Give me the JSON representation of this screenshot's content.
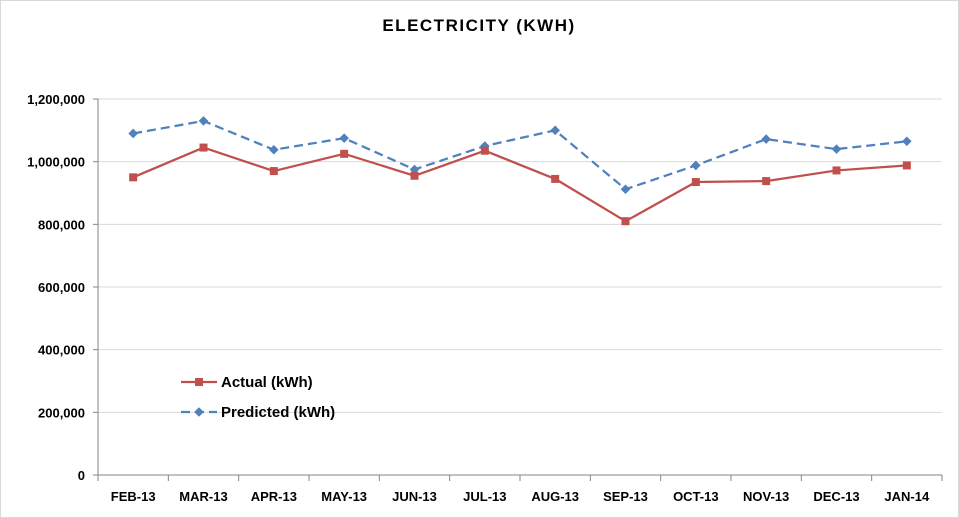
{
  "chart_data": {
    "type": "line",
    "title": "ELECTRICITY (KWH)",
    "xlabel": "",
    "ylabel": "",
    "categories": [
      "FEB-13",
      "MAR-13",
      "APR-13",
      "MAY-13",
      "JUN-13",
      "JUL-13",
      "AUG-13",
      "SEP-13",
      "OCT-13",
      "NOV-13",
      "DEC-13",
      "JAN-14"
    ],
    "ylim": [
      0,
      1200000
    ],
    "yticks": [
      0,
      200000,
      400000,
      600000,
      800000,
      1000000,
      1200000
    ],
    "ytick_labels": [
      "0",
      "200,000",
      "400,000",
      "600,000",
      "800,000",
      "1,000,000",
      "1,200,000"
    ],
    "grid": true,
    "legend_position": "lower-left",
    "series": [
      {
        "name": "Actual (kWh)",
        "color": "#c0504d",
        "marker": "square",
        "line_style": "solid",
        "values": [
          950000,
          1045000,
          970000,
          1025000,
          955000,
          1035000,
          945000,
          810000,
          935000,
          938000,
          972000,
          988000
        ]
      },
      {
        "name": "Predicted (kWh)",
        "color": "#4f81bd",
        "marker": "diamond",
        "line_style": "dashed",
        "values": [
          1090000,
          1130000,
          1038000,
          1075000,
          975000,
          1050000,
          1100000,
          912000,
          988000,
          1072000,
          1040000,
          1065000
        ]
      }
    ]
  }
}
